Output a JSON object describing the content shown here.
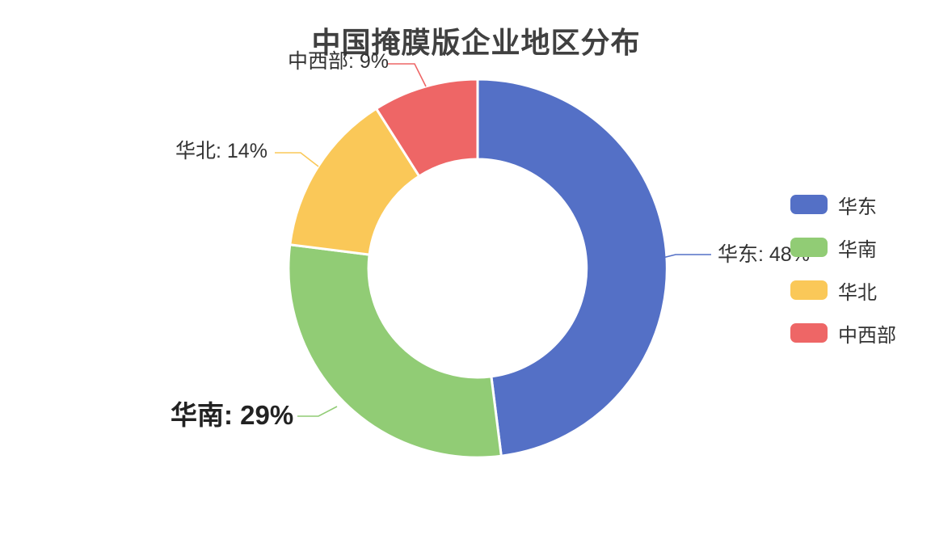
{
  "title": "中国掩膜版企业地区分布",
  "chart_data": {
    "type": "pie",
    "subtype": "donut",
    "title": "中国掩膜版企业地区分布",
    "unit": "%",
    "start_angle_deg": 0,
    "direction": "clockwise",
    "inner_radius_ratio": 0.577,
    "series": [
      {
        "name": "华东",
        "value": 48,
        "color": "#5470c6",
        "label": "华东: 48%",
        "emphasized": false
      },
      {
        "name": "华南",
        "value": 29,
        "color": "#91cc75",
        "label": "华南: 29%",
        "emphasized": true
      },
      {
        "name": "华北",
        "value": 14,
        "color": "#fac858",
        "label": "华北: 14%",
        "emphasized": false
      },
      {
        "name": "中西部",
        "value": 9,
        "color": "#ee6666",
        "label": "中西部: 9%",
        "emphasized": false
      }
    ],
    "legend_position": "right",
    "legend": [
      "华东",
      "华南",
      "华北",
      "中西部"
    ]
  },
  "legend": {
    "items": [
      {
        "label": "华东",
        "color": "#5470c6"
      },
      {
        "label": "华南",
        "color": "#91cc75"
      },
      {
        "label": "华北",
        "color": "#fac858"
      },
      {
        "label": "中西部",
        "color": "#ee6666"
      }
    ]
  },
  "style": {
    "slice_border_color": "#ffffff",
    "background": "#ffffff"
  }
}
